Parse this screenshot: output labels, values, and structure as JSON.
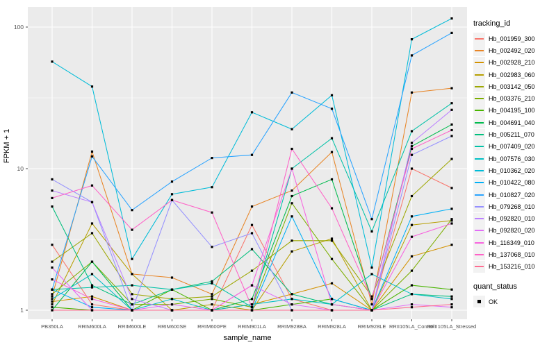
{
  "figure": {
    "ylabel": "FPKM + 1",
    "xlabel": "sample_name"
  },
  "chart_data": {
    "type": "line",
    "title": "",
    "xlabel": "sample_name",
    "ylabel": "FPKM + 1",
    "y_scale": "log10",
    "y_ticks": [
      1,
      10,
      100
    ],
    "y_minor_gridlines": [
      3.162,
      31.62
    ],
    "ylim": [
      0.86,
      139
    ],
    "grid": "on",
    "panel_bg": "#EBEBEB",
    "grid_color": "#FFFFFF",
    "tick_label_color": "#4D4D4D",
    "point_shape": "filled-black-square",
    "legend_position": "right",
    "legend": {
      "color_title": "tracking_id",
      "shape_title": "quant_status",
      "shape_items": [
        "OK"
      ]
    },
    "x_categories": [
      "PB350LA",
      "RRIM600LA",
      "RRIM600LE",
      "RRIM600SE",
      "RRIM600PE",
      "RRIM901LA",
      "RRIM928BA",
      "RRIM928LA",
      "RRIM928LE",
      "RRII105LA_Control",
      "RRII105LA_Stressed"
    ],
    "series": [
      {
        "name": "Hb_001959_300",
        "color": "#F8766D",
        "values": [
          2.9,
          1.1,
          1.0,
          1.0,
          1.0,
          4.0,
          1.2,
          1.0,
          1.0,
          10.0,
          7.3
        ]
      },
      {
        "name": "Hb_002492_020",
        "color": "#E88526",
        "values": [
          1.25,
          13.2,
          1.8,
          1.7,
          1.3,
          5.4,
          7.0,
          13.1,
          1.1,
          34.5,
          37.0
        ]
      },
      {
        "name": "Hb_002928_210",
        "color": "#D39200",
        "values": [
          1.15,
          1.25,
          1.0,
          1.0,
          1.0,
          1.1,
          1.3,
          1.55,
          1.0,
          2.4,
          2.9
        ]
      },
      {
        "name": "Hb_002983_060",
        "color": "#B79F00",
        "values": [
          1.1,
          4.1,
          1.8,
          1.0,
          1.1,
          1.0,
          2.6,
          3.2,
          1.0,
          4.0,
          4.3
        ]
      },
      {
        "name": "Hb_003142_050",
        "color": "#9DA702",
        "values": [
          2.2,
          3.5,
          1.3,
          1.2,
          1.25,
          1.9,
          3.1,
          3.1,
          1.25,
          6.4,
          11.7
        ]
      },
      {
        "name": "Hb_003376_210",
        "color": "#7CAE00",
        "values": [
          1.3,
          2.2,
          1.1,
          1.1,
          1.2,
          1.05,
          5.7,
          2.3,
          1.0,
          1.9,
          4.4
        ]
      },
      {
        "name": "Hb_004195_100",
        "color": "#49B500",
        "values": [
          1.05,
          1.0,
          1.0,
          1.4,
          1.0,
          1.0,
          1.1,
          1.2,
          1.0,
          1.5,
          1.4
        ]
      },
      {
        "name": "Hb_004691_040",
        "color": "#00BB4E",
        "values": [
          1.0,
          2.2,
          1.0,
          1.0,
          1.0,
          1.2,
          6.4,
          8.4,
          1.2,
          14.4,
          20.5
        ]
      },
      {
        "name": "Hb_005211_070",
        "color": "#00BF7D",
        "values": [
          5.4,
          1.5,
          1.1,
          1.4,
          1.6,
          2.7,
          1.3,
          1.1,
          1.0,
          1.3,
          1.25
        ]
      },
      {
        "name": "Hb_007409_020",
        "color": "#00C1A7",
        "values": [
          1.4,
          1.45,
          1.5,
          1.4,
          1.55,
          1.05,
          10.0,
          16.4,
          3.6,
          18.4,
          29.0
        ]
      },
      {
        "name": "Hb_007576_030",
        "color": "#00BFC4",
        "values": [
          1.2,
          1.8,
          1.0,
          1.2,
          1.0,
          1.1,
          1.2,
          1.1,
          1.8,
          1.3,
          1.2
        ]
      },
      {
        "name": "Hb_010362_020",
        "color": "#00BCD8",
        "values": [
          57,
          38,
          2.3,
          6.6,
          7.4,
          25,
          19,
          33,
          2.0,
          82,
          115
        ]
      },
      {
        "name": "Hb_010422_080",
        "color": "#00B0F6",
        "values": [
          1.4,
          1.05,
          1.0,
          1.0,
          1.0,
          1.0,
          4.6,
          1.2,
          1.0,
          4.6,
          5.2
        ]
      },
      {
        "name": "Hb_010827_020",
        "color": "#29A3FF",
        "values": [
          1.4,
          12.2,
          5.1,
          8.1,
          11.9,
          12.5,
          34.5,
          26.5,
          4.4,
          63,
          91
        ]
      },
      {
        "name": "Hb_079268_010",
        "color": "#9590FF",
        "values": [
          8.4,
          5.8,
          1.0,
          6.0,
          2.8,
          3.5,
          1.0,
          1.0,
          1.0,
          12.5,
          17.0
        ]
      },
      {
        "name": "Hb_092820_010",
        "color": "#BC81FF",
        "values": [
          7.0,
          5.8,
          1.2,
          1.0,
          1.0,
          1.0,
          1.0,
          1.0,
          1.0,
          15.2,
          26.0
        ]
      },
      {
        "name": "Hb_092820_020",
        "color": "#E26EF7",
        "values": [
          2.0,
          1.0,
          1.0,
          1.1,
          1.0,
          1.5,
          1.1,
          1.0,
          1.0,
          1.1,
          1.05
        ]
      },
      {
        "name": "Hb_116349_010",
        "color": "#F863DF",
        "values": [
          1.65,
          1.2,
          1.0,
          1.0,
          1.0,
          1.5,
          10.0,
          1.1,
          1.0,
          3.3,
          4.1
        ]
      },
      {
        "name": "Hb_137068_010",
        "color": "#FF61C7",
        "values": [
          6.2,
          7.6,
          3.7,
          6.0,
          4.9,
          1.05,
          13.8,
          5.25,
          1.2,
          13.8,
          18.7
        ]
      },
      {
        "name": "Hb_153216_010",
        "color": "#FF6C91",
        "values": [
          1.0,
          1.0,
          1.0,
          1.0,
          1.0,
          1.0,
          1.0,
          1.0,
          1.0,
          1.05,
          1.1
        ]
      }
    ]
  }
}
